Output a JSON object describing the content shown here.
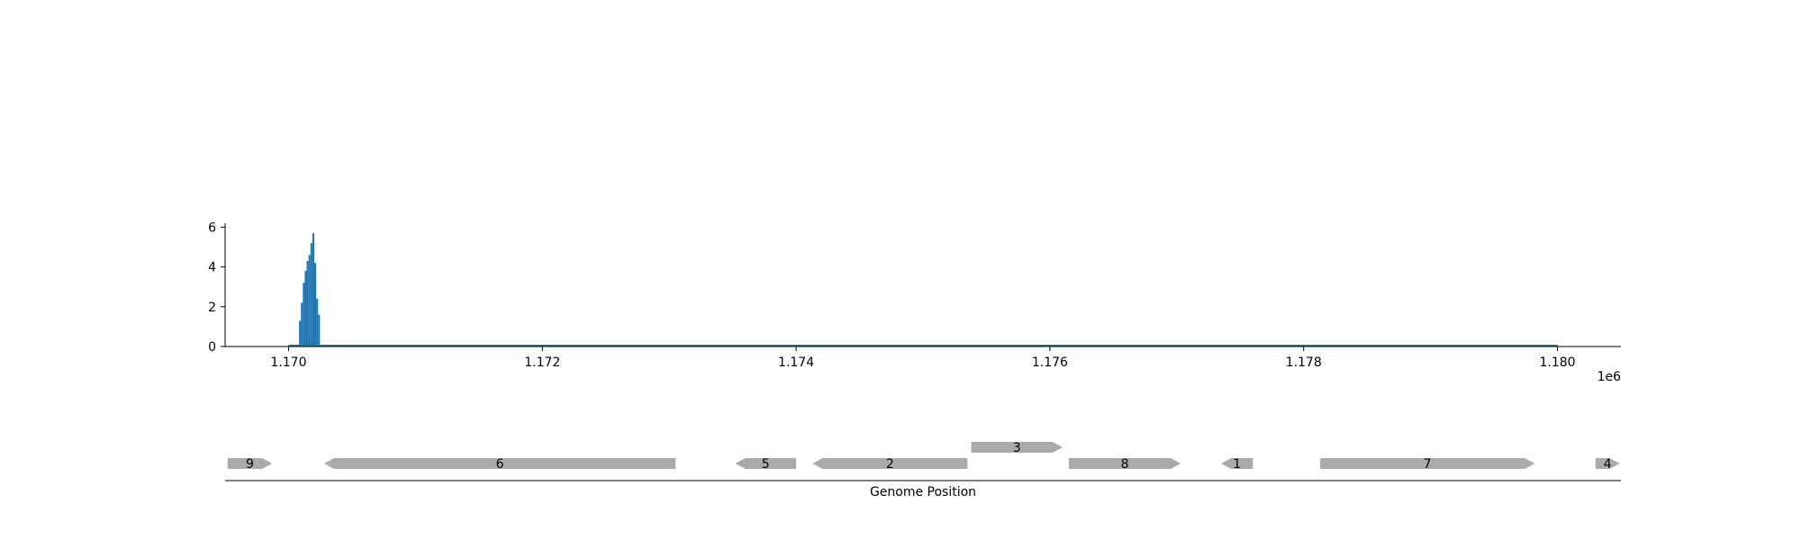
{
  "chart_data": [
    {
      "type": "bar",
      "title": "",
      "xlabel": "",
      "ylabel": "",
      "x_offset_label": "1e6",
      "xlim": [
        1169500,
        1180500
      ],
      "ylim": [
        0,
        6.2
      ],
      "x_ticks": [
        {
          "value": 1170000,
          "label": "1.170"
        },
        {
          "value": 1172000,
          "label": "1.172"
        },
        {
          "value": 1174000,
          "label": "1.174"
        },
        {
          "value": 1176000,
          "label": "1.176"
        },
        {
          "value": 1178000,
          "label": "1.178"
        },
        {
          "value": 1180000,
          "label": "1.180"
        }
      ],
      "y_ticks": [
        {
          "value": 0,
          "label": "0"
        },
        {
          "value": 2,
          "label": "2"
        },
        {
          "value": 4,
          "label": "4"
        },
        {
          "value": 6,
          "label": "6"
        }
      ],
      "bar_color": "#1f77b4",
      "baseline_range": [
        1170000,
        1180000
      ],
      "x": [
        1170090,
        1170105,
        1170120,
        1170135,
        1170150,
        1170165,
        1170180,
        1170195,
        1170210,
        1170225,
        1170240
      ],
      "values": [
        1.3,
        2.2,
        3.2,
        3.8,
        4.3,
        4.6,
        5.2,
        5.7,
        4.2,
        2.4,
        1.6
      ],
      "grid": false
    },
    {
      "type": "gene-track",
      "xlabel": "Genome Position",
      "xlim": [
        1169500,
        1180500
      ],
      "gene_color": "#aaaaaa",
      "genes": [
        {
          "label": "9",
          "start": 1169520,
          "end": 1169870,
          "strand": "+",
          "row": 0
        },
        {
          "label": "6",
          "start": 1170280,
          "end": 1173050,
          "strand": "-",
          "row": 0
        },
        {
          "label": "5",
          "start": 1173520,
          "end": 1174000,
          "strand": "-",
          "row": 0
        },
        {
          "label": "2",
          "start": 1174130,
          "end": 1175350,
          "strand": "-",
          "row": 0
        },
        {
          "label": "3",
          "start": 1175380,
          "end": 1176100,
          "strand": "+",
          "row": 1
        },
        {
          "label": "8",
          "start": 1176150,
          "end": 1177030,
          "strand": "+",
          "row": 0
        },
        {
          "label": "1",
          "start": 1177350,
          "end": 1177600,
          "strand": "-",
          "row": 0
        },
        {
          "label": "7",
          "start": 1178130,
          "end": 1179820,
          "strand": "+",
          "row": 0
        },
        {
          "label": "4",
          "start": 1180300,
          "end": 1180490,
          "strand": "+",
          "row": 0
        }
      ]
    }
  ]
}
